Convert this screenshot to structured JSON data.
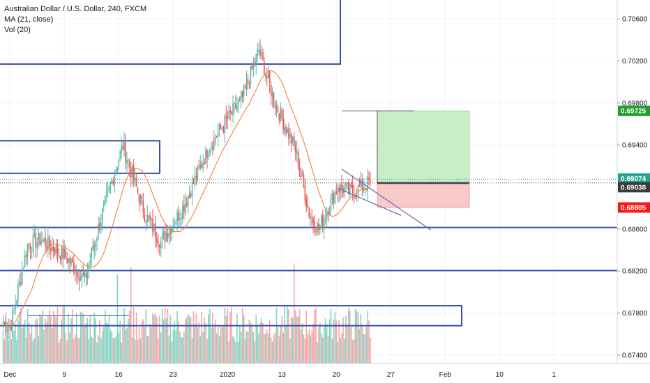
{
  "header": {
    "symbol_line": "Australian Dollar / U.S. Dollar, 240, FXCM",
    "indicator_ma": "MA (21, close)",
    "indicator_vol": "Vol (20)"
  },
  "colors": {
    "up": "#53b9a6",
    "down": "#ef5350",
    "up_vol": "#88d2c4",
    "down_vol": "#f4a7a6",
    "ma": "#f57f3a",
    "rect": "#3a4fb0",
    "line": "#5d6aa3",
    "tp_fill": "#c9ecc9",
    "sl_fill": "#f9c8c8",
    "tag_tp": "#1f9e2f",
    "tag_sl": "#f21a1a",
    "tag_cur": "#23a48f",
    "tag_entry": "#3b3b3b"
  },
  "price_axis": {
    "ticks": [
      "0.70600",
      "0.70200",
      "0.69800",
      "0.69400",
      "0.68600",
      "0.68200",
      "0.67800",
      "0.67400"
    ],
    "tick_values": [
      0.706,
      0.702,
      0.698,
      0.694,
      0.686,
      0.682,
      0.678,
      0.674
    ],
    "tags": [
      {
        "label": "0.69725",
        "value": 0.69725,
        "role": "tp"
      },
      {
        "label": "0.69074",
        "value": 0.69074,
        "role": "cur"
      },
      {
        "label": "0.69038",
        "value": 0.69038,
        "role": "entry"
      },
      {
        "label": "0.68805",
        "value": 0.68805,
        "role": "sl"
      }
    ]
  },
  "time_axis": {
    "labels": [
      "Dec",
      "9",
      "16",
      "23",
      "2020",
      "13",
      "20",
      "27",
      "Feb",
      "10",
      "1"
    ],
    "label_index": [
      5,
      45,
      85,
      125,
      165,
      205,
      245,
      285,
      325,
      365,
      405
    ]
  },
  "chart_data": {
    "type": "candlestick",
    "title": "Australian Dollar / U.S. Dollar, 240, FXCM",
    "series": [
      {
        "name": "MA (21, close)",
        "type": "line"
      },
      {
        "name": "Vol (20)",
        "type": "bar"
      }
    ],
    "ylim": [
      0.6732,
      0.7078
    ],
    "anchors": [
      {
        "x": "Nov 28",
        "close": 0.6771
      },
      {
        "x": "Dec 2",
        "close": 0.6765
      },
      {
        "x": "Dec 3",
        "close": 0.6845
      },
      {
        "x": "Dec 5",
        "close": 0.685
      },
      {
        "x": "Dec 9",
        "close": 0.6835
      },
      {
        "x": "Dec 11",
        "close": 0.6812
      },
      {
        "x": "Dec 13",
        "close": 0.688
      },
      {
        "x": "Dec 14",
        "close": 0.694
      },
      {
        "x": "Dec 16",
        "close": 0.6875
      },
      {
        "x": "Dec 18",
        "close": 0.6848
      },
      {
        "x": "Dec 20",
        "close": 0.688
      },
      {
        "x": "Dec 24",
        "close": 0.694
      },
      {
        "x": "Dec 27",
        "close": 0.6985
      },
      {
        "x": "Dec 31",
        "close": 0.703
      },
      {
        "x": "Jan 2",
        "close": 0.698
      },
      {
        "x": "Jan 6",
        "close": 0.6935
      },
      {
        "x": "Jan 8",
        "close": 0.6875
      },
      {
        "x": "Jan 10",
        "close": 0.686
      },
      {
        "x": "Jan 13",
        "close": 0.69
      },
      {
        "x": "Jan 15",
        "close": 0.6895
      },
      {
        "x": "Jan 17",
        "close": 0.6905
      }
    ],
    "vol_spikes": [
      {
        "x": "Dec 13",
        "level": "high"
      },
      {
        "x": "Dec 14",
        "level": "high"
      },
      {
        "x": "Jan 8",
        "level": "high"
      }
    ],
    "position": {
      "entry": 0.69038,
      "take_profit": 0.69725,
      "stop_loss": 0.68805
    }
  }
}
